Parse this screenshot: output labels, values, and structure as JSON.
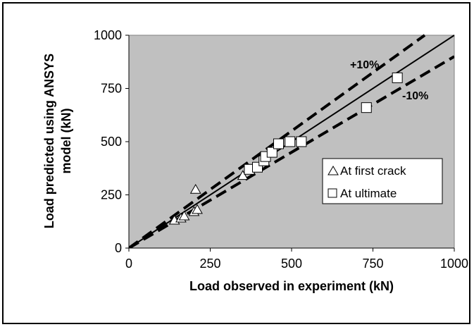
{
  "chart_data": {
    "type": "scatter",
    "xlabel": "Load observed in experiment (kN)",
    "ylabel_lines": [
      "Load predicted using ANSYS",
      "model (kN)"
    ],
    "xlim": [
      0,
      1000
    ],
    "ylim": [
      0,
      1000
    ],
    "x_ticks": [
      "0",
      "250",
      "500",
      "750",
      "1000"
    ],
    "y_ticks": [
      "0",
      "250",
      "500",
      "750",
      "1000"
    ],
    "plot_background": "#c0c0c0",
    "grid": false,
    "legend_position": "right-middle",
    "series": [
      {
        "name": "At first crack",
        "marker": "triangle",
        "points": [
          [
            140,
            130
          ],
          [
            160,
            140
          ],
          [
            170,
            150
          ],
          [
            200,
            170
          ],
          [
            210,
            180
          ],
          [
            205,
            275
          ],
          [
            350,
            340
          ],
          [
            370,
            370
          ]
        ]
      },
      {
        "name": "At ultimate",
        "marker": "square",
        "points": [
          [
            370,
            370
          ],
          [
            395,
            380
          ],
          [
            415,
            410
          ],
          [
            420,
            430
          ],
          [
            440,
            450
          ],
          [
            460,
            490
          ],
          [
            495,
            500
          ],
          [
            530,
            500
          ],
          [
            730,
            660
          ],
          [
            825,
            800
          ]
        ]
      }
    ],
    "reference_lines": [
      {
        "label": "",
        "slope": 1.0,
        "style": "solid"
      },
      {
        "label": "+10%",
        "slope": 1.1,
        "style": "dashed"
      },
      {
        "label": "-10%",
        "slope": 0.9,
        "style": "dashed"
      }
    ]
  }
}
